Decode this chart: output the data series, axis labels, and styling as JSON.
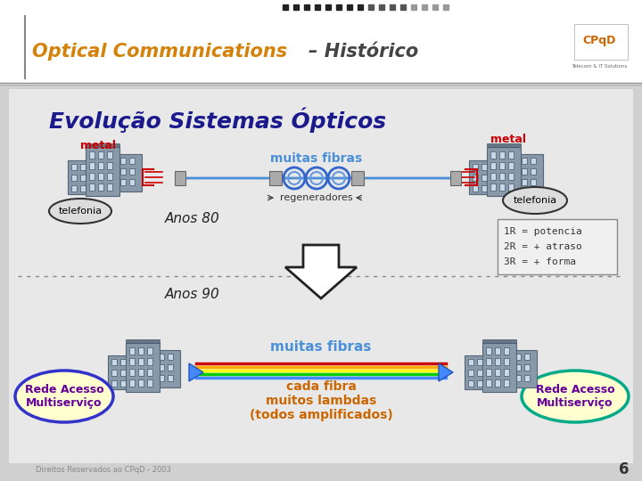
{
  "title": "Optical Communications  – Histórico",
  "subtitle": "Evolução Sistemas Ópticos",
  "bg_color": "#f0f0f0",
  "header_bg": "#ffffff",
  "slide_bg": "#d8d8d8",
  "content_bg": "#e8e8e8",
  "title_color_oc": "#d4820a",
  "title_color_hist": "#404040",
  "subtitle_color": "#1a1a8c",
  "anos80_label": "Anos 80",
  "anos90_label": "Anos 90",
  "muitas_fibras_label": "muitas fibras",
  "regeneradores_label": "regeneradores",
  "metal_label": "metal",
  "telefonia_label": "telefonia",
  "rede_label": "Rede Acesso\nMultiserviço",
  "cada_fibra_label": "cada fibra\nmuitos lambdas\n(todos amplificados)",
  "legend_lines": [
    "1R = potencia",
    "2R = + atraso",
    "3R = + forma"
  ],
  "footer": "Direitos Reservados ao CPqD - 2003",
  "page_num": "6",
  "fiber_color_top": "#4a90d9",
  "metal_color": "#cc0000",
  "rede_circle_color_left": "#3333cc",
  "rede_circle_color_right": "#00aa88",
  "rede_text_color": "#660099",
  "cada_fibra_color": "#cc6600",
  "muitas_fibras_color_top": "#4a90d9",
  "muitas_fibras_color_bottom": "#4a90d9"
}
